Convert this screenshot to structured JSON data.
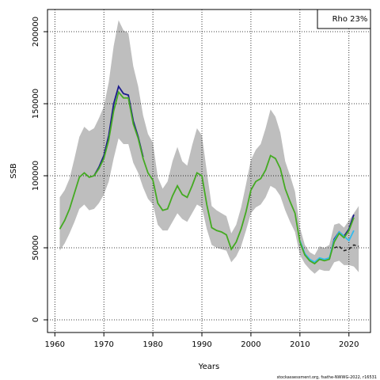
{
  "chart_data": {
    "type": "line",
    "y_label": "SSB",
    "x_label": "Years",
    "annotation": "Rho 23%",
    "footnote": "stockassessment.org, fsathe-NWWG-2022, r16531",
    "xlim": [
      1958.5,
      2024.4
    ],
    "ylim": [
      -8800,
      215400
    ],
    "xticks": [
      1960,
      1970,
      1980,
      1990,
      2000,
      2010,
      2020
    ],
    "yticks": [
      0,
      50000,
      100000,
      150000,
      200000
    ],
    "grid": true,
    "band": {
      "color": "#bebebe",
      "x": [
        1961,
        1962,
        1963,
        1964,
        1965,
        1966,
        1967,
        1968,
        1969,
        1970,
        1971,
        1972,
        1973,
        1974,
        1975,
        1976,
        1977,
        1978,
        1979,
        1980,
        1981,
        1982,
        1983,
        1984,
        1985,
        1986,
        1987,
        1988,
        1989,
        1990,
        1991,
        1992,
        1993,
        1994,
        1995,
        1996,
        1997,
        1998,
        1999,
        2000,
        2001,
        2002,
        2003,
        2004,
        2005,
        2006,
        2007,
        2008,
        2009,
        2010,
        2011,
        2012,
        2013,
        2014,
        2015,
        2016,
        2017,
        2018,
        2019,
        2020,
        2021,
        2022
      ],
      "upper": [
        85000,
        90000,
        98000,
        112000,
        127000,
        134000,
        131000,
        133000,
        140000,
        148000,
        165000,
        190000,
        208000,
        201000,
        199000,
        176000,
        162000,
        142000,
        129000,
        123000,
        99000,
        91000,
        96000,
        110000,
        120000,
        110000,
        107000,
        121000,
        133000,
        128000,
        103000,
        79000,
        76000,
        74000,
        72000,
        60000,
        66000,
        78000,
        94000,
        111000,
        118000,
        122000,
        133000,
        146000,
        141000,
        130000,
        110000,
        100000,
        89000,
        64000,
        52000,
        47000,
        45000,
        51000,
        50000,
        52000,
        66000,
        67000,
        64000,
        69000,
        74000,
        79000
      ],
      "lower": [
        48000,
        53000,
        60000,
        68000,
        77000,
        80000,
        76000,
        77000,
        81000,
        87000,
        96000,
        112000,
        126000,
        122000,
        122000,
        109000,
        102000,
        92000,
        84000,
        80000,
        66000,
        62000,
        62000,
        68000,
        74000,
        70000,
        68000,
        74000,
        80000,
        78000,
        63000,
        52000,
        50000,
        49000,
        48000,
        40000,
        44000,
        51000,
        62000,
        74000,
        78000,
        80000,
        85000,
        93000,
        91000,
        86000,
        76000,
        68000,
        61000,
        45000,
        39000,
        35000,
        32000,
        35000,
        34000,
        34000,
        40000,
        41000,
        38000,
        38000,
        37000,
        33000
      ]
    },
    "series": [
      {
        "color": "#1a1a8c",
        "x": [
          1968,
          1969,
          1970,
          1971,
          1972,
          1973,
          1974,
          1975,
          1976,
          1977,
          1978
        ],
        "values": [
          100000,
          106000,
          114000,
          128000,
          150000,
          162000,
          157000,
          156000,
          138000,
          127000,
          113000
        ]
      },
      {
        "color": "#1a1a8c",
        "x": [
          2016,
          2017,
          2018,
          2019,
          2020,
          2021
        ],
        "values": [
          42000,
          56000,
          61000,
          58000,
          63000,
          73000
        ]
      },
      {
        "color": "#33bbee",
        "x": [
          2010,
          2011,
          2012,
          2013,
          2014,
          2015,
          2016,
          2017,
          2018,
          2019,
          2020,
          2021
        ],
        "values": [
          55000,
          46000,
          42000,
          40000,
          43000,
          42000,
          43000,
          55000,
          61000,
          58000,
          55000,
          62000
        ]
      },
      {
        "color": "#44aa22",
        "x": [
          1961,
          1962,
          1963,
          1964,
          1965,
          1966,
          1967,
          1968,
          1969,
          1970,
          1971,
          1972,
          1973,
          1974,
          1975,
          1976,
          1977,
          1978,
          1979,
          1980,
          1981,
          1982,
          1983,
          1984,
          1985,
          1986,
          1987,
          1988,
          1989,
          1990,
          1991,
          1992,
          1993,
          1994,
          1995,
          1996,
          1997,
          1998,
          1999,
          2000,
          2001,
          2002,
          2003,
          2004,
          2005,
          2006,
          2007,
          2008,
          2009,
          2010,
          2011,
          2012,
          2013,
          2014,
          2015,
          2016,
          2017,
          2018,
          2019,
          2020,
          2021
        ],
        "values": [
          63000,
          69000,
          77000,
          88000,
          99000,
          102000,
          99000,
          100000,
          105000,
          112000,
          125000,
          145000,
          158000,
          154000,
          154000,
          136000,
          126000,
          112000,
          102000,
          97000,
          81000,
          76000,
          77000,
          86000,
          93000,
          87000,
          85000,
          93000,
          102000,
          100000,
          80000,
          64000,
          62000,
          61000,
          59000,
          49000,
          54000,
          63000,
          75000,
          90000,
          96000,
          98000,
          104000,
          114000,
          112000,
          105000,
          91000,
          82000,
          74000,
          54000,
          45000,
          41000,
          39000,
          42000,
          41000,
          42000,
          54000,
          60000,
          57000,
          62000,
          71000
        ]
      },
      {
        "color": "#222222",
        "dashed": true,
        "x": [
          2017,
          2018,
          2019,
          2020,
          2021,
          2022
        ],
        "values": [
          50000,
          51000,
          48000,
          49000,
          52000,
          51000
        ]
      }
    ]
  }
}
